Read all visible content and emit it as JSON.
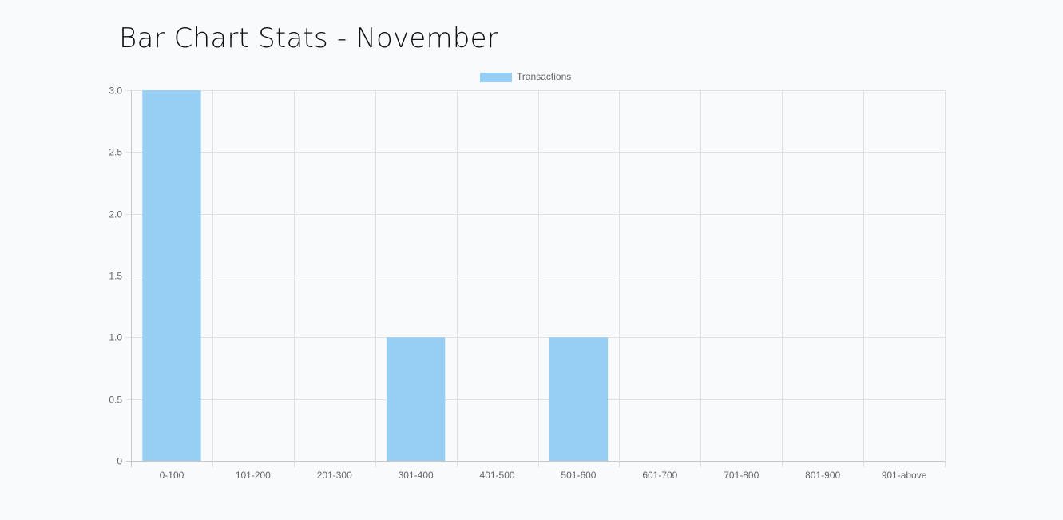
{
  "page": {
    "title": "Bar Chart Stats - November"
  },
  "colors": {
    "bar_fill": "#97cef3",
    "bar_border": "#97cef3",
    "grid": "#e1e1e1",
    "axis": "#c8c8c8",
    "text": "#666666",
    "background": "#f8fafc"
  },
  "chart_data": {
    "type": "bar",
    "title": "Bar Chart Stats - November",
    "xlabel": "",
    "ylabel": "",
    "categories": [
      "0-100",
      "101-200",
      "201-300",
      "301-400",
      "401-500",
      "501-600",
      "601-700",
      "701-800",
      "801-900",
      "901-above"
    ],
    "series": [
      {
        "name": "Transactions",
        "values": [
          3,
          0,
          0,
          1,
          0,
          1,
          0,
          0,
          0,
          0
        ]
      }
    ],
    "ylim": [
      0,
      3
    ],
    "yticks": [
      "0",
      "0.5",
      "1.0",
      "1.5",
      "2.0",
      "2.5",
      "3.0"
    ],
    "grid": true,
    "legend_position": "top-center"
  }
}
